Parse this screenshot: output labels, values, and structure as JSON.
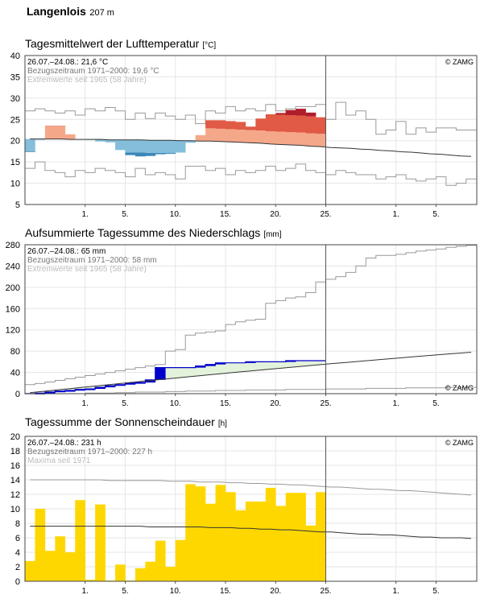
{
  "header": {
    "station": "Langenlois",
    "elevation": "207 m"
  },
  "x_ticks": [
    "1.",
    "5.",
    "10.",
    "15.",
    "20.",
    "25.",
    "1.",
    "5."
  ],
  "chart_data": [
    {
      "type": "bar",
      "title": "Tagesmittelwert der Lufttemperatur",
      "unit": "[°C]",
      "ylim": [
        5,
        40
      ],
      "yticks": [
        5,
        10,
        15,
        20,
        25,
        30,
        35,
        40
      ],
      "grid": true,
      "info": [
        "26.07.–24.08.: 21,6 °C",
        "Bezugszeitraum 1971–2000: 19,6 °C",
        "Extremwerte seit 1965 (58 Jahre)"
      ],
      "credit": "© ZAMG",
      "colors": {
        "cool": "#85bedb",
        "cool_deep": "#3c87b6",
        "warm": "#f5a889",
        "warm_deep": "#e05a45",
        "hot": "#b01d2a"
      },
      "days": [
        26,
        27,
        28,
        29,
        30,
        31,
        1,
        2,
        3,
        4,
        5,
        6,
        7,
        8,
        9,
        10,
        11,
        12,
        13,
        14,
        15,
        16,
        17,
        18,
        19,
        20,
        21,
        22,
        23,
        24
      ],
      "values": [
        17.3,
        20.2,
        23.5,
        23.5,
        21.5,
        20.3,
        20.2,
        19.8,
        19.6,
        17.8,
        16.6,
        16.3,
        16.4,
        16.8,
        16.9,
        17.2,
        19.5,
        21.3,
        24.8,
        24.8,
        24.6,
        24.4,
        23.3,
        25.2,
        26.2,
        26.5,
        27.2,
        27.5,
        26.6,
        25.5
      ],
      "normal": [
        20.4,
        20.4,
        20.4,
        20.4,
        20.3,
        20.3,
        20.3,
        20.3,
        20.2,
        20.2,
        20.2,
        20.2,
        20.1,
        20.1,
        20.1,
        20.0,
        20.0,
        19.9,
        19.9,
        19.8,
        19.7,
        19.6,
        19.5,
        19.4,
        19.2,
        19.1,
        19.0,
        18.9,
        18.7,
        18.6,
        18.4,
        18.3,
        18.2,
        18.0,
        17.9,
        17.7,
        17.6,
        17.4,
        17.3,
        17.1,
        16.9,
        16.8,
        16.6,
        16.4,
        16.3
      ],
      "max": [
        27.0,
        27.5,
        27.0,
        26.5,
        27.0,
        26.0,
        27.5,
        27.0,
        27.8,
        27.0,
        25.0,
        26.5,
        25.2,
        26.5,
        25.8,
        25.0,
        26.0,
        24.0,
        27.0,
        26.5,
        28.0,
        27.0,
        27.5,
        27.0,
        28.5,
        27.0,
        27.5,
        28.0,
        28.0,
        28.5,
        25.0,
        29.0,
        26.0,
        27.0,
        25.0,
        21.5,
        22.5,
        24.5,
        21.5,
        23.0,
        22.0,
        23.0,
        23.0,
        22.5,
        22.5
      ],
      "min": [
        13.5,
        15.0,
        13.0,
        12.5,
        11.5,
        13.0,
        12.5,
        13.5,
        13.0,
        12.5,
        11.5,
        13.5,
        12.0,
        12.5,
        12.0,
        11.0,
        14.0,
        14.0,
        13.0,
        13.5,
        12.0,
        13.0,
        12.5,
        13.0,
        14.0,
        13.0,
        13.5,
        14.5,
        13.0,
        12.5,
        12.0,
        13.0,
        12.5,
        12.0,
        12.0,
        11.0,
        11.5,
        12.0,
        11.0,
        10.5,
        11.0,
        11.5,
        9.5,
        10.0,
        11.0
      ]
    },
    {
      "type": "area",
      "title": "Aufsummierte Tagessumme des Niederschlags",
      "unit": "[mm]",
      "ylim": [
        0,
        280
      ],
      "yticks": [
        0,
        40,
        80,
        120,
        160,
        200,
        240,
        280
      ],
      "grid": true,
      "info": [
        "26.07.–24.08.: 65 mm",
        "Bezugszeitraum 1971–2000: 58 mm",
        "Extremwerte seit 1965 (58 Jahre)"
      ],
      "credit": "© ZAMG",
      "colors": {
        "actual": "#0000cc",
        "deficit_fill": "#e3f2da"
      },
      "cumulative": [
        0,
        1,
        3,
        5,
        6,
        8,
        9,
        12,
        15,
        17,
        20,
        21,
        26,
        49,
        49,
        49,
        49,
        52,
        55,
        58,
        58,
        58,
        60,
        60,
        60,
        60,
        62,
        62,
        62,
        62,
        63,
        63,
        64,
        64,
        64,
        64,
        64,
        64,
        64,
        64,
        64,
        64,
        64,
        65,
        65
      ],
      "normal": [
        1.9,
        3.8,
        5.7,
        7.7,
        9.6,
        11.5,
        13.4,
        15.3,
        17.2,
        19.1,
        21.0,
        22.9,
        24.8,
        26.6,
        28.5,
        30.3,
        32.1,
        33.9,
        35.7,
        37.5,
        39.3,
        41.0,
        42.8,
        44.5,
        46.2,
        47.9,
        49.6,
        51.3,
        53.0,
        54.6,
        56.3,
        57.9,
        59.5,
        61.1,
        62.7,
        64.3,
        65.9,
        67.4,
        69.0,
        70.5,
        72.0,
        73.5,
        75.0,
        76.5,
        78.0
      ],
      "max": [
        17,
        19,
        22,
        25,
        28,
        31,
        34,
        37,
        40,
        43,
        46,
        49,
        52,
        55,
        80,
        83,
        110,
        114,
        116,
        118,
        130,
        135,
        138,
        140,
        170,
        175,
        180,
        182,
        190,
        210,
        215,
        220,
        228,
        240,
        255,
        260,
        260,
        262,
        265,
        268,
        270,
        272,
        275,
        277,
        279
      ],
      "min": [
        0,
        0,
        0,
        0,
        0,
        0,
        1,
        1,
        1,
        2,
        2,
        3,
        3,
        3,
        4,
        4,
        5,
        5,
        5,
        6,
        6,
        6,
        7,
        7,
        7,
        7,
        8,
        8,
        8,
        8,
        9,
        9,
        9,
        9,
        10,
        10,
        10,
        10,
        11,
        11,
        11,
        11,
        12,
        12,
        12
      ]
    },
    {
      "type": "bar",
      "title": "Tagessumme der Sonnenscheindauer",
      "unit": "[h]",
      "ylim": [
        0,
        20
      ],
      "yticks": [
        0,
        2,
        4,
        6,
        8,
        10,
        12,
        14,
        16,
        18,
        20
      ],
      "grid": true,
      "info": [
        "26.07.–24.08.: 231 h",
        "Bezugszeitraum 1971–2000: 227 h",
        "Maxima seit 1971"
      ],
      "credit": "© ZAMG",
      "colors": {
        "bar": "#ffd700"
      },
      "values": [
        2.8,
        10.0,
        4.2,
        6.2,
        4.0,
        11.2,
        0.2,
        10.6,
        0.1,
        2.3,
        0.1,
        1.8,
        2.7,
        5.6,
        2.0,
        5.7,
        13.4,
        13.1,
        10.7,
        13.3,
        12.3,
        9.8,
        11.0,
        11.0,
        12.9,
        10.4,
        12.2,
        12.2,
        7.7,
        12.3
      ],
      "normal": [
        7.6,
        7.6,
        7.6,
        7.6,
        7.6,
        7.6,
        7.6,
        7.6,
        7.6,
        7.6,
        7.6,
        7.6,
        7.5,
        7.5,
        7.5,
        7.5,
        7.5,
        7.5,
        7.4,
        7.4,
        7.4,
        7.3,
        7.3,
        7.2,
        7.2,
        7.1,
        7.1,
        7.0,
        6.9,
        6.8,
        6.8,
        6.7,
        6.6,
        6.5,
        6.5,
        6.4,
        6.4,
        6.3,
        6.2,
        6.1,
        6.1,
        6.0,
        6.0,
        6.0,
        5.9
      ],
      "max": [
        14.0,
        14.0,
        14.0,
        14.0,
        14.0,
        14.0,
        14.0,
        14.0,
        13.9,
        13.9,
        13.9,
        13.9,
        13.9,
        13.9,
        13.8,
        13.8,
        13.8,
        13.7,
        13.7,
        13.7,
        13.6,
        13.6,
        13.5,
        13.5,
        13.4,
        13.4,
        13.3,
        13.3,
        13.2,
        13.1,
        13.0,
        13.0,
        12.9,
        12.8,
        12.7,
        12.7,
        12.6,
        12.5,
        12.5,
        12.4,
        12.3,
        12.2,
        12.1,
        12.0,
        11.9
      ]
    }
  ]
}
